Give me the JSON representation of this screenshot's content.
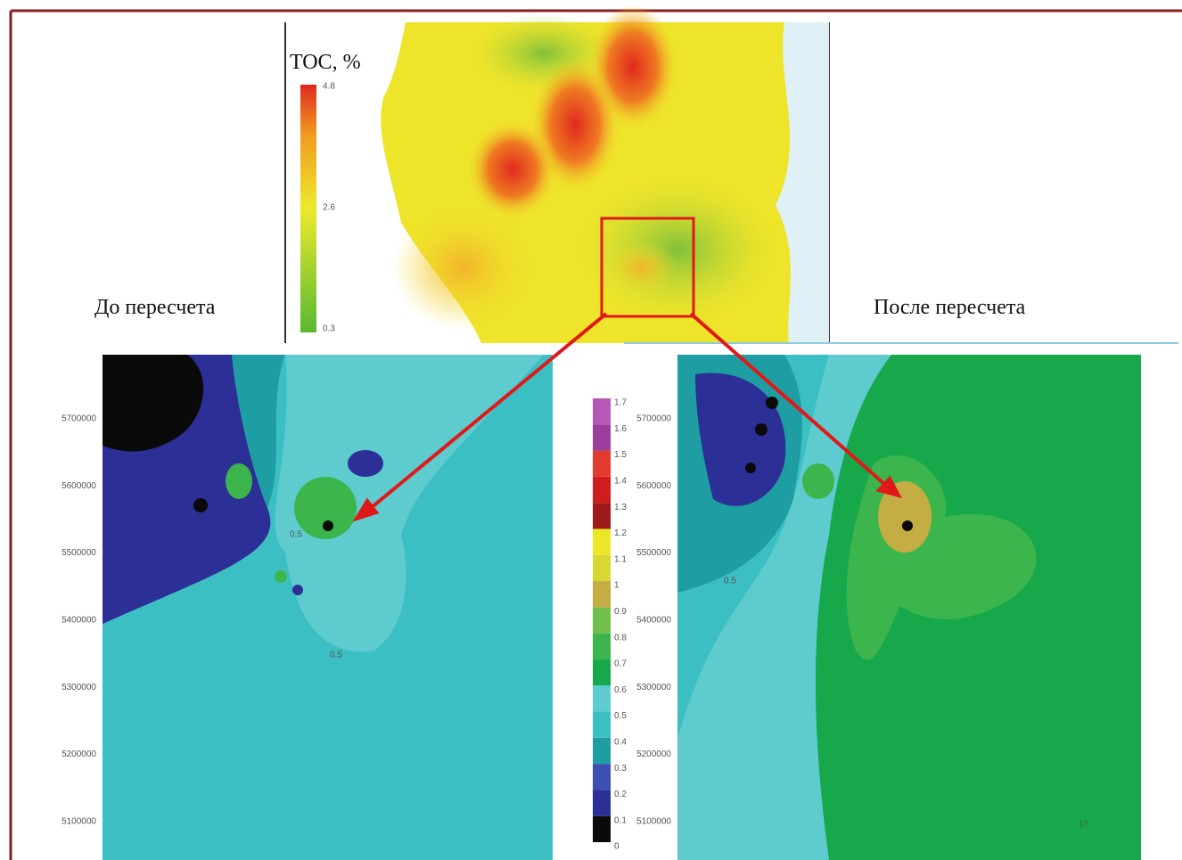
{
  "overview_map": {
    "legend_title": "TOC, %",
    "legend_ticks": [
      "4.8",
      "2.6",
      "0.3"
    ]
  },
  "panels": [
    {
      "title": "До пересчета",
      "y_axis_labels": [
        "5700000",
        "5600000",
        "5500000",
        "5400000",
        "5300000",
        "5200000",
        "5100000"
      ],
      "contour_labels": [
        "0.5",
        "0.5"
      ]
    },
    {
      "title": "После пересчета",
      "y_axis_labels": [
        "5700000",
        "5600000",
        "5500000",
        "5400000",
        "5300000",
        "5200000",
        "5100000"
      ],
      "contour_labels": [
        "0.5"
      ]
    }
  ],
  "color_scale": {
    "labels": [
      "0",
      "0.1",
      "0.2",
      "0.3",
      "0.4",
      "0.5",
      "0.6",
      "0.7",
      "0.8",
      "0.9",
      "1",
      "1.1",
      "1.2",
      "1.3",
      "1.4",
      "1.5",
      "1.6",
      "1.7"
    ],
    "colors": [
      "#0a0a0a",
      "#2c2f96",
      "#3d4fb0",
      "#1e9ea2",
      "#3cbfc2",
      "#5ecbcf",
      "#17a84b",
      "#3bb54c",
      "#72c04c",
      "#c4ad42",
      "#d8d834",
      "#ebe626",
      "#9e1a1a",
      "#cf1d1d",
      "#e33a2e",
      "#9b3d9b",
      "#b659b6"
    ]
  },
  "page_number": "17"
}
